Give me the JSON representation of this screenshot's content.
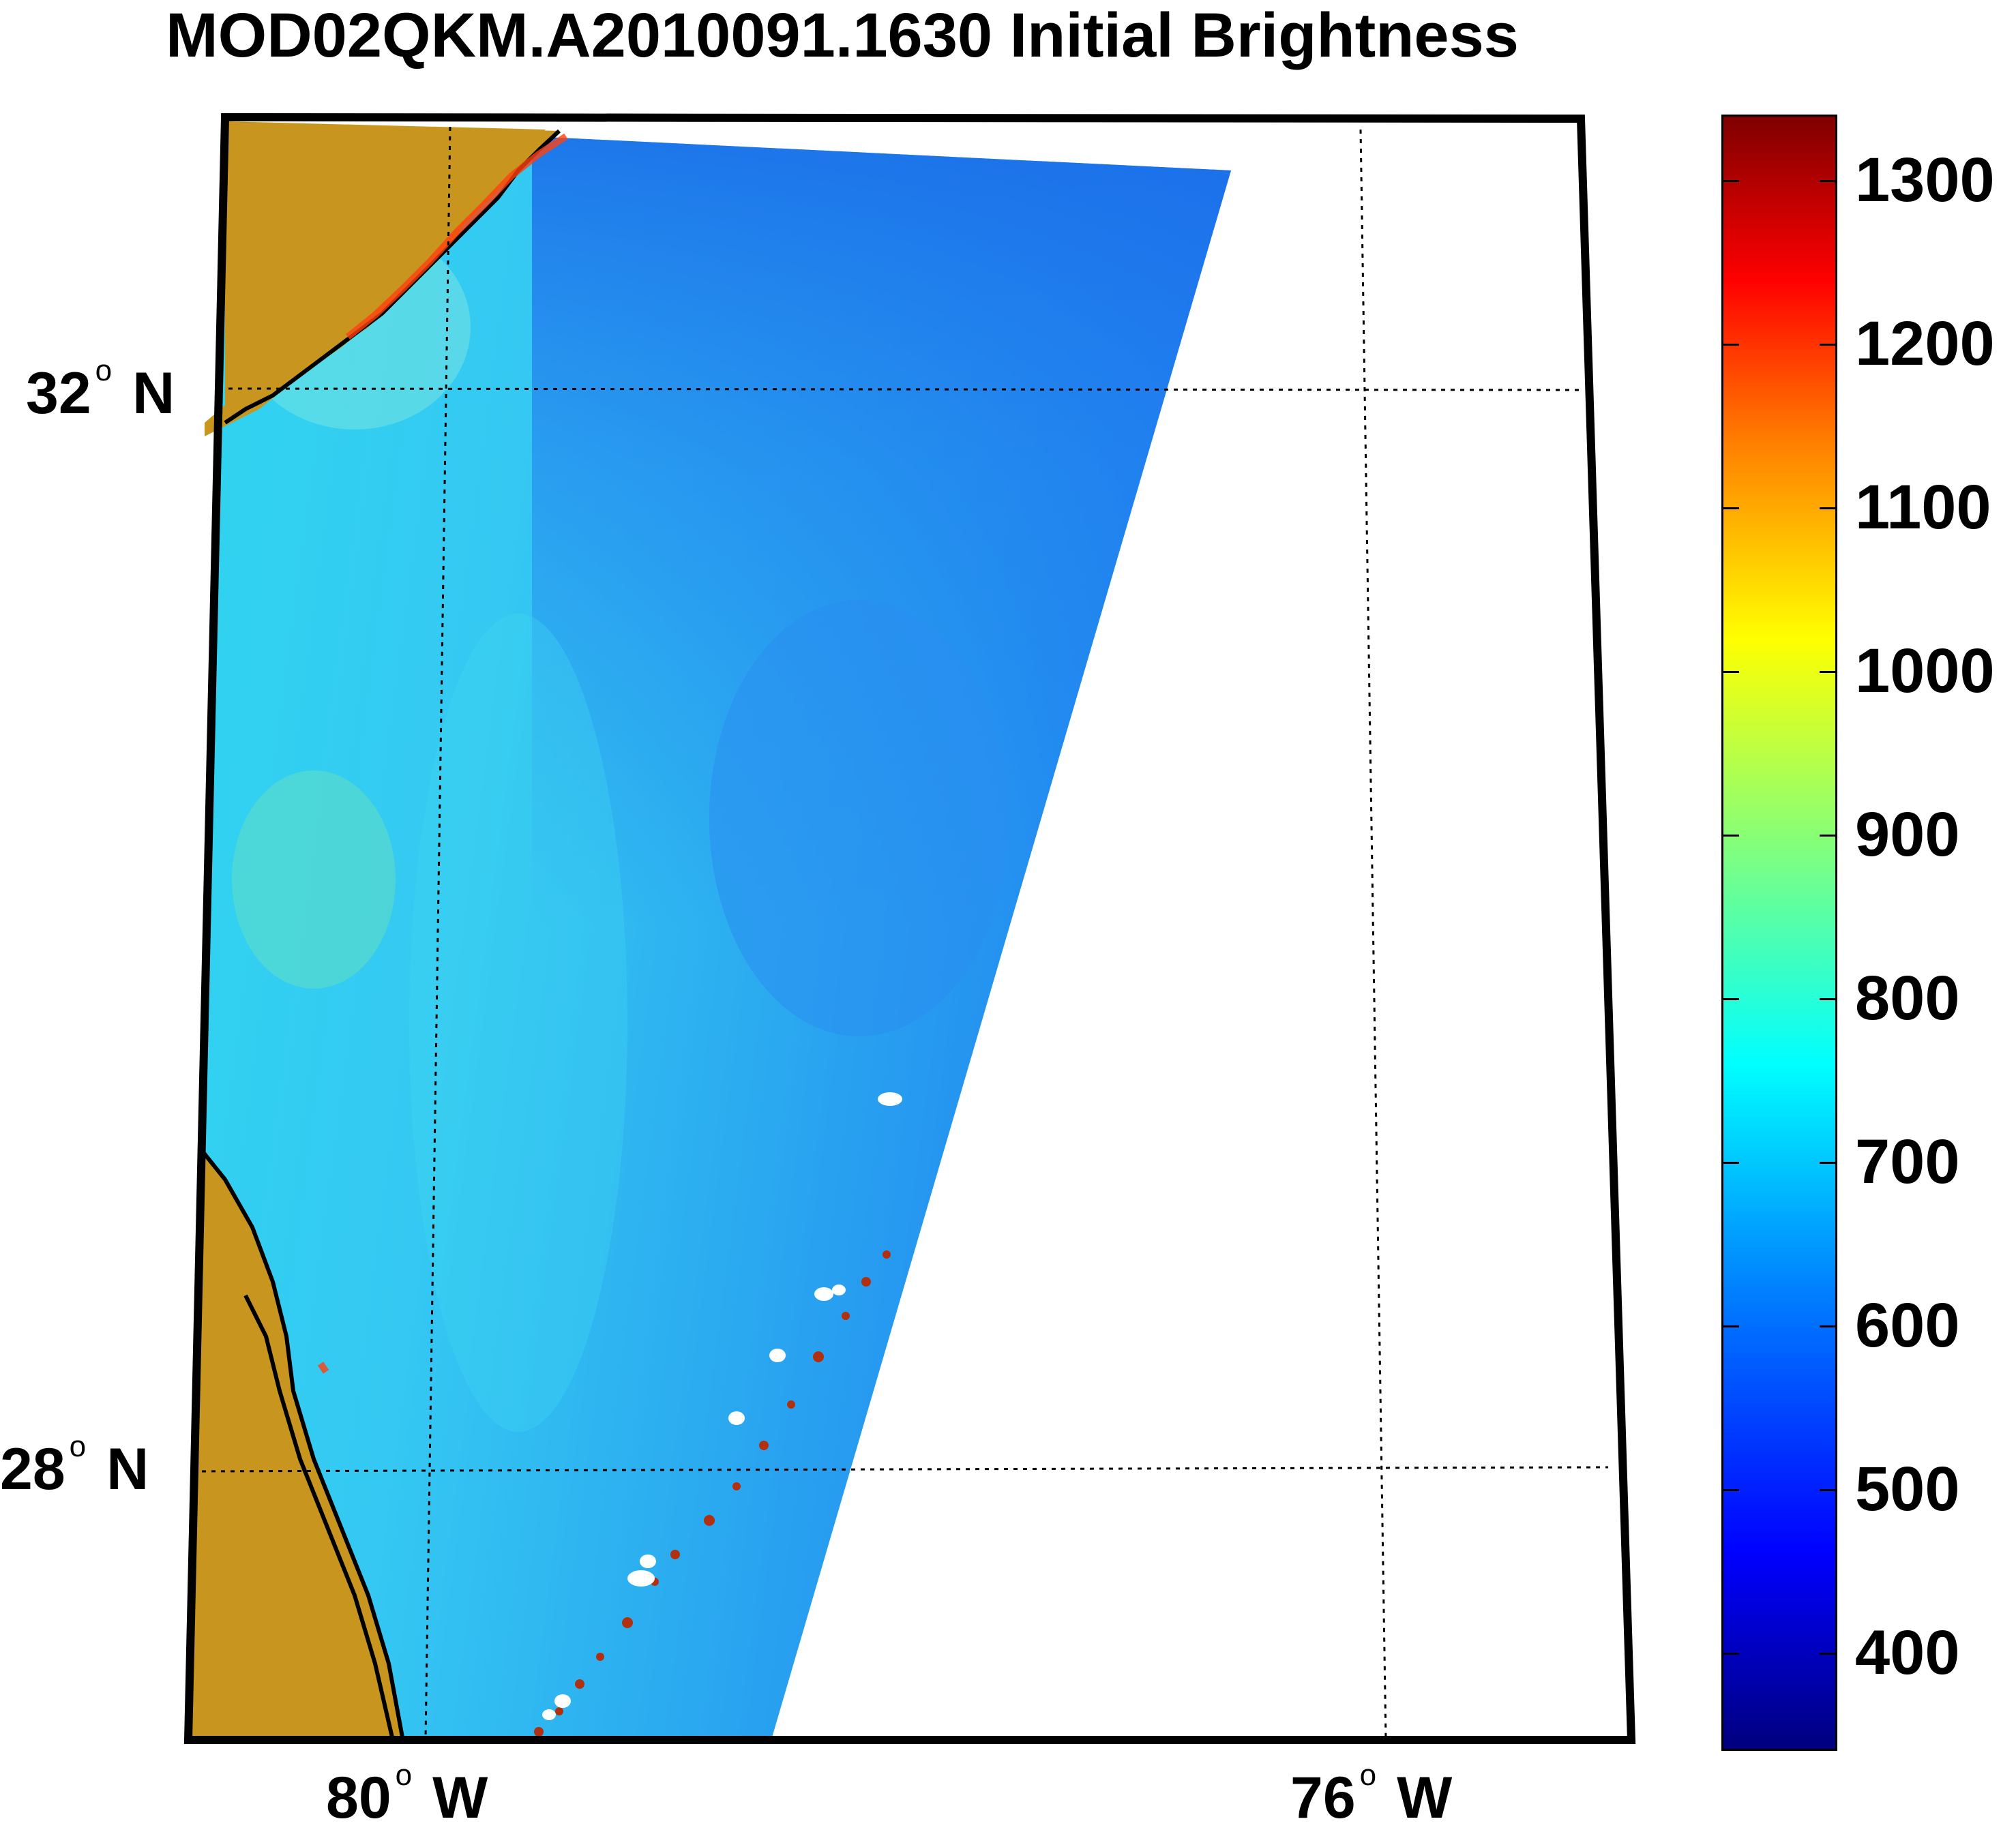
{
  "title": "MOD02QKM.A2010091.1630 Initial Brightness",
  "latitude_labels": [
    "32",
    "28"
  ],
  "latitude_hemisphere": "N",
  "longitude_labels": [
    "80",
    "76"
  ],
  "longitude_hemisphere": "W",
  "degree_symbol": "o",
  "colorbar": {
    "min": 340,
    "max": 1340,
    "ticks": [
      "1300",
      "1200",
      "1100",
      "1000",
      "900",
      "800",
      "700",
      "600",
      "500",
      "400"
    ],
    "colormap": "jet"
  },
  "colors": {
    "land": "#c8961e",
    "coastline": "#000000",
    "ocean_low": "#1e64ff",
    "ocean_mid": "#2ec8f0",
    "no_data": "#ffffff"
  }
}
